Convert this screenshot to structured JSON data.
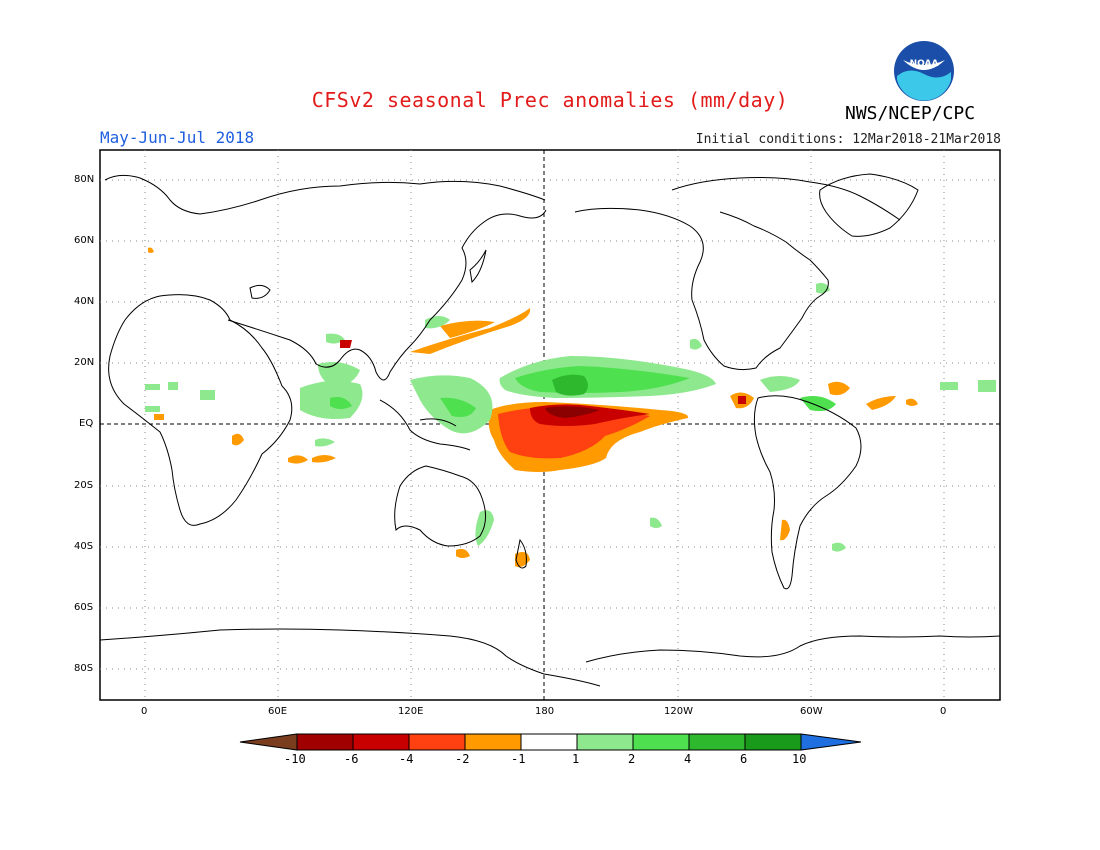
{
  "title": "CFSv2 seasonal Prec anomalies (mm/day)",
  "season": "May-Jun-Jul 2018",
  "initial_conditions": "Initial conditions: 12Mar2018-21Mar2018",
  "agency": "NWS/NCEP/CPC",
  "logo_text": "NOAA",
  "lat_labels": [
    "80N",
    "60N",
    "40N",
    "20N",
    "EQ",
    "20S",
    "40S",
    "60S",
    "80S"
  ],
  "lon_labels": [
    "0",
    "60E",
    "120E",
    "180",
    "120W",
    "60W",
    "0"
  ],
  "colorbar": {
    "labels": [
      "-10",
      "-6",
      "-4",
      "-2",
      "-1",
      "1",
      "2",
      "4",
      "6",
      "10"
    ],
    "colors": [
      "#7a3d1e",
      "#a00000",
      "#c80000",
      "#ff4010",
      "#ff9a00",
      "#ffffff",
      "#8ee88e",
      "#4ee04e",
      "#2eb82e",
      "#1a9a1a",
      "#1f6fe0"
    ]
  },
  "chart_data": {
    "type": "heatmap",
    "variable": "Precipitation anomaly",
    "units": "mm/day",
    "period": "May-Jun-Jul 2018",
    "lat_range": [
      -90,
      90
    ],
    "lon_range": [
      -20,
      380
    ]
  }
}
